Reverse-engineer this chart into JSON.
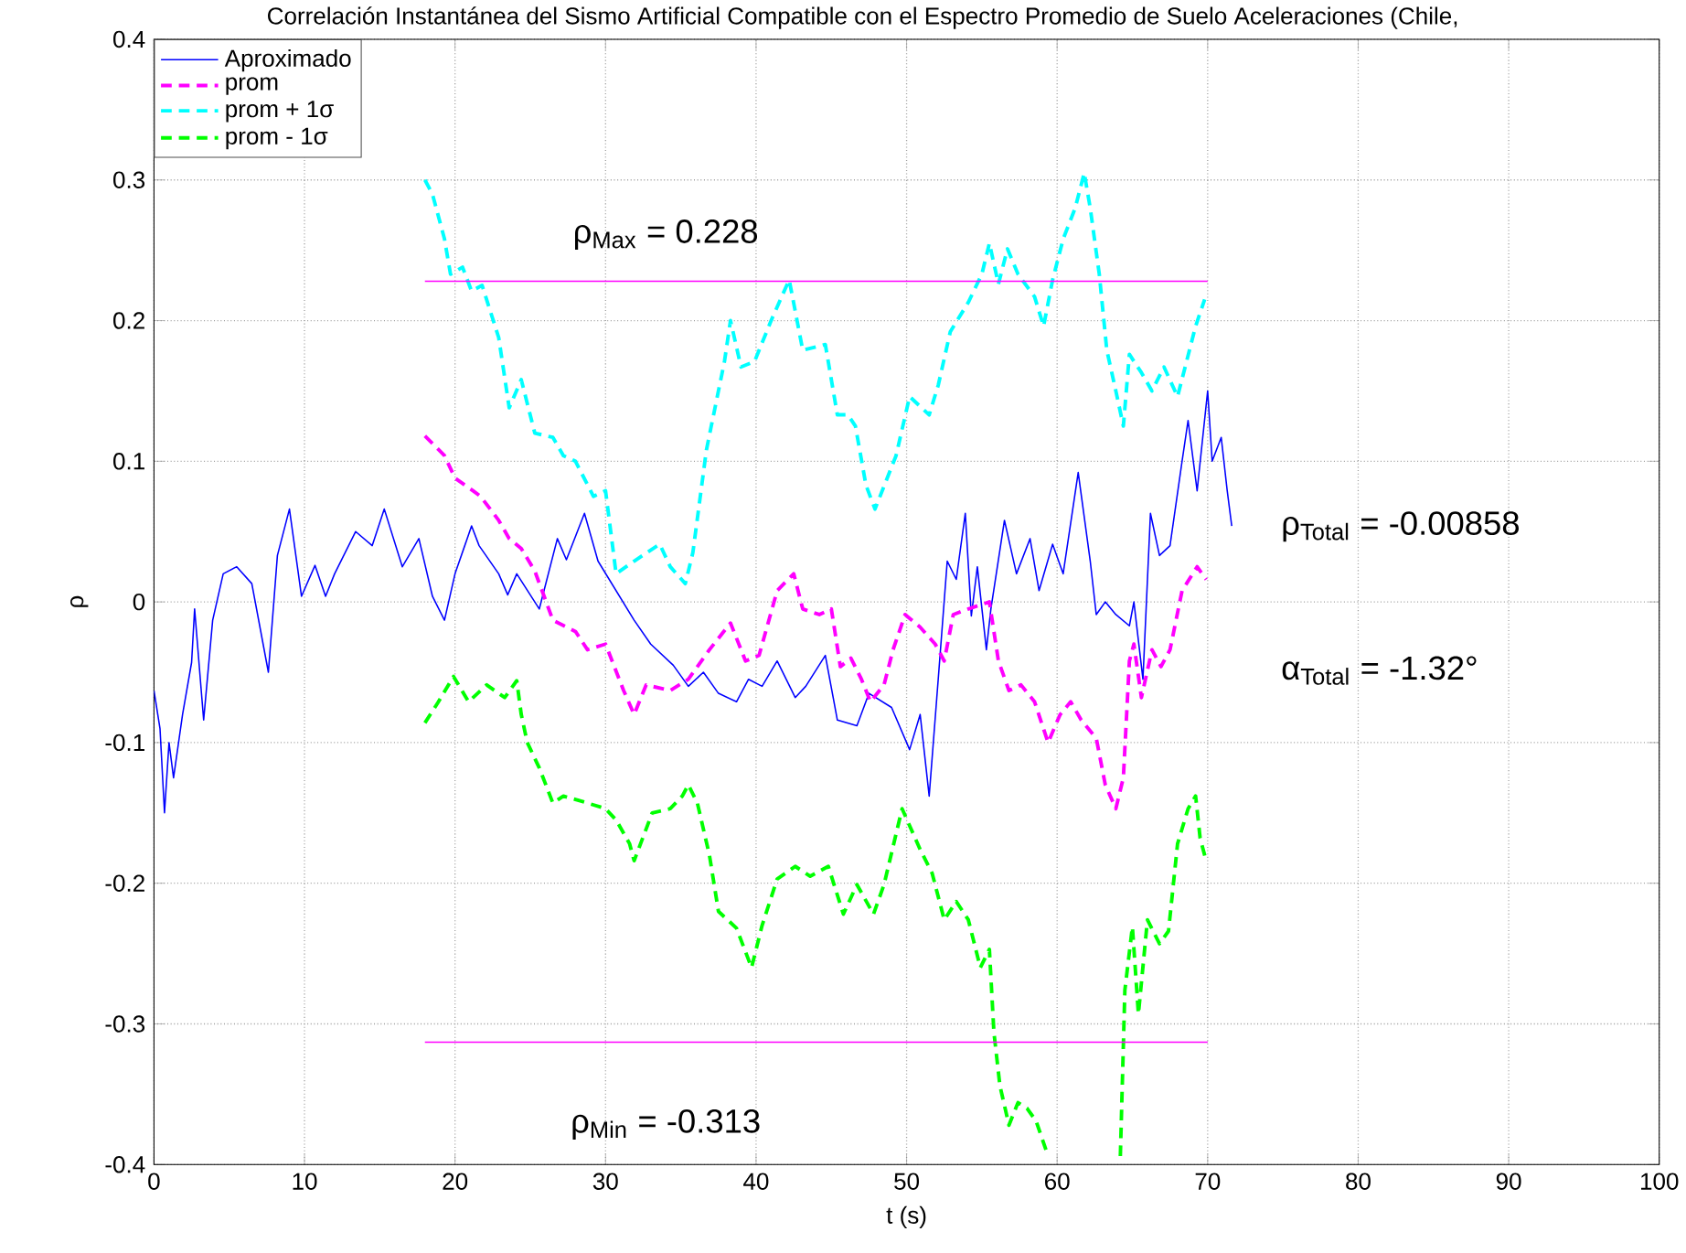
{
  "chart_data": {
    "type": "line",
    "title": "Correlación Instantánea del Sismo Artificial Compatible con el Espectro Promedio de Suelo Aceleraciones (Chile,",
    "xlabel": "t (s)",
    "ylabel": "ρ",
    "xlim": [
      0,
      100
    ],
    "ylim": [
      -0.4,
      0.4
    ],
    "xticks": [
      0,
      10,
      20,
      30,
      40,
      50,
      60,
      70,
      80,
      90,
      100
    ],
    "yticks": [
      -0.4,
      -0.3,
      -0.2,
      -0.1,
      0,
      0.1,
      0.2,
      0.3,
      0.4
    ],
    "grid": true,
    "legend": "top left",
    "series": [
      {
        "name": "Aproximado",
        "color": "#0000ff",
        "line_style": "solid",
        "x": [
          0,
          0.4,
          0.7,
          1.0,
          1.3,
          1.9,
          2.5,
          2.7,
          3.3,
          3.9,
          4.6,
          5.5,
          6.5,
          7.6,
          8.2,
          9.0,
          9.8,
          10.7,
          11.4,
          12.0,
          13.4,
          14.5,
          15.3,
          16.5,
          17.6,
          18.5,
          19.3,
          20.0,
          21.1,
          21.6,
          22.9,
          23.5,
          24.1,
          25.6,
          26.8,
          27.4,
          28.6,
          29.5,
          30.7,
          31.9,
          33.0,
          34.5,
          35.5,
          36.5,
          37.5,
          38.7,
          39.5,
          40.4,
          41.4,
          42.6,
          43.3,
          44.6,
          45.4,
          46.7,
          47.5,
          49.0,
          50.2,
          50.9,
          51.5,
          52.1,
          52.7,
          53.3,
          53.9,
          54.3,
          54.7,
          55.3,
          55.6,
          56.5,
          57.3,
          58.2,
          58.8,
          59.7,
          60.4,
          61.4,
          62.2,
          62.6,
          63.2,
          63.9,
          64.8,
          65.1,
          65.7,
          66.2,
          66.8,
          67.5,
          68.3,
          68.7,
          69.3,
          70.0,
          70.3,
          70.9,
          71.3,
          71.6
        ],
        "values": [
          -0.063,
          -0.09,
          -0.15,
          -0.1,
          -0.125,
          -0.08,
          -0.043,
          -0.005,
          -0.084,
          -0.013,
          0.02,
          0.025,
          0.013,
          -0.05,
          0.033,
          0.066,
          0.004,
          0.026,
          0.004,
          0.02,
          0.05,
          0.04,
          0.066,
          0.025,
          0.045,
          0.004,
          -0.013,
          0.02,
          0.054,
          0.04,
          0.02,
          0.005,
          0.02,
          -0.005,
          0.045,
          0.03,
          0.063,
          0.029,
          0.008,
          -0.013,
          -0.03,
          -0.045,
          -0.06,
          -0.05,
          -0.065,
          -0.071,
          -0.055,
          -0.06,
          -0.042,
          -0.068,
          -0.06,
          -0.038,
          -0.084,
          -0.088,
          -0.065,
          -0.075,
          -0.105,
          -0.08,
          -0.138,
          -0.055,
          0.029,
          0.016,
          0.063,
          -0.01,
          0.025,
          -0.034,
          -0.005,
          0.058,
          0.02,
          0.045,
          0.008,
          0.041,
          0.02,
          0.092,
          0.029,
          -0.009,
          0.0,
          -0.009,
          -0.017,
          0.0,
          -0.055,
          0.063,
          0.033,
          0.04,
          0.1,
          0.129,
          0.079,
          0.15,
          0.1,
          0.117,
          0.079,
          0.054
        ]
      },
      {
        "name": "prom",
        "color": "#ff00ff",
        "line_style": "dashed",
        "x": [
          18.0,
          19.3,
          20.0,
          21.2,
          21.7,
          22.9,
          23.6,
          24.4,
          25.3,
          26.5,
          28.0,
          28.8,
          30.0,
          31.2,
          31.9,
          32.7,
          34.3,
          35.5,
          36.9,
          38.3,
          39.3,
          40.2,
          41.4,
          42.5,
          43.1,
          44.2,
          45.0,
          45.6,
          46.3,
          47.0,
          47.6,
          48.5,
          49.1,
          49.9,
          50.9,
          51.9,
          52.5,
          53.1,
          54.1,
          55.5,
          56.1,
          56.8,
          57.6,
          58.5,
          59.4,
          60.2,
          60.9,
          61.6,
          62.6,
          63.2,
          63.9,
          64.4,
          64.8,
          65.1,
          65.6,
          66.3,
          66.9,
          67.5,
          68.3,
          69.3,
          69.9
        ],
        "values": [
          0.118,
          0.104,
          0.088,
          0.079,
          0.075,
          0.058,
          0.045,
          0.038,
          0.022,
          -0.013,
          -0.021,
          -0.034,
          -0.03,
          -0.063,
          -0.08,
          -0.059,
          -0.063,
          -0.055,
          -0.034,
          -0.015,
          -0.042,
          -0.038,
          0.008,
          0.02,
          -0.005,
          -0.009,
          -0.005,
          -0.046,
          -0.04,
          -0.055,
          -0.071,
          -0.059,
          -0.034,
          -0.009,
          -0.018,
          -0.03,
          -0.042,
          -0.009,
          -0.005,
          0.0,
          -0.042,
          -0.063,
          -0.059,
          -0.071,
          -0.1,
          -0.08,
          -0.071,
          -0.084,
          -0.097,
          -0.13,
          -0.147,
          -0.125,
          -0.042,
          -0.03,
          -0.068,
          -0.034,
          -0.046,
          -0.034,
          0.008,
          0.025,
          0.016
        ]
      },
      {
        "name": "prom + 1σ",
        "color": "#00ffff",
        "line_style": "dashed",
        "x": [
          18.0,
          18.5,
          19.3,
          19.7,
          20.5,
          21.1,
          21.8,
          22.9,
          23.6,
          24.4,
          25.3,
          26.5,
          27.2,
          28.0,
          29.2,
          30.0,
          30.7,
          31.9,
          33.6,
          34.3,
          35.3,
          35.8,
          36.7,
          37.9,
          38.3,
          39.0,
          39.9,
          41.0,
          42.2,
          43.1,
          44.6,
          45.4,
          46.1,
          46.6,
          47.3,
          47.9,
          49.3,
          50.2,
          51.5,
          52.1,
          52.9,
          54.1,
          55.0,
          55.5,
          56.1,
          56.7,
          57.4,
          58.5,
          59.1,
          59.7,
          60.4,
          61.2,
          61.8,
          62.2,
          62.8,
          63.3,
          63.9,
          64.4,
          64.8,
          65.6,
          66.3,
          67.1,
          68.0,
          68.6,
          69.2,
          69.8
        ],
        "values": [
          0.3,
          0.29,
          0.258,
          0.233,
          0.238,
          0.221,
          0.225,
          0.188,
          0.138,
          0.158,
          0.12,
          0.117,
          0.104,
          0.1,
          0.075,
          0.079,
          0.02,
          0.029,
          0.041,
          0.025,
          0.013,
          0.035,
          0.108,
          0.171,
          0.2,
          0.167,
          0.171,
          0.2,
          0.229,
          0.179,
          0.183,
          0.133,
          0.133,
          0.125,
          0.083,
          0.066,
          0.104,
          0.146,
          0.133,
          0.154,
          0.192,
          0.213,
          0.233,
          0.255,
          0.226,
          0.251,
          0.233,
          0.217,
          0.196,
          0.229,
          0.258,
          0.28,
          0.305,
          0.28,
          0.233,
          0.179,
          0.15,
          0.125,
          0.176,
          0.163,
          0.15,
          0.167,
          0.146,
          0.171,
          0.196,
          0.215
        ]
      },
      {
        "name": "prom - 1σ",
        "color": "#00ff00",
        "line_style": "dashed",
        "x": [
          18.0,
          18.9,
          19.9,
          20.9,
          22.1,
          23.3,
          24.1,
          24.4,
          24.8,
          25.6,
          26.5,
          27.2,
          28.8,
          30.0,
          30.7,
          31.6,
          31.9,
          33.1,
          34.3,
          35.1,
          35.5,
          36.1,
          36.9,
          37.5,
          38.7,
          39.7,
          40.4,
          41.4,
          42.6,
          43.6,
          44.8,
          45.8,
          46.7,
          47.8,
          48.5,
          49.7,
          50.9,
          51.7,
          52.5,
          53.3,
          54.1,
          54.9,
          55.5,
          55.8,
          56.2,
          56.8,
          57.4,
          58.0,
          58.6,
          59.4,
          62.0,
          64.2,
          64.5,
          65.0,
          65.4,
          66.0,
          66.8,
          67.4,
          68.0,
          68.7,
          69.2,
          69.5,
          69.9
        ],
        "values": [
          -0.086,
          -0.071,
          -0.053,
          -0.071,
          -0.059,
          -0.068,
          -0.056,
          -0.08,
          -0.1,
          -0.118,
          -0.143,
          -0.138,
          -0.143,
          -0.147,
          -0.155,
          -0.172,
          -0.184,
          -0.15,
          -0.147,
          -0.138,
          -0.13,
          -0.143,
          -0.18,
          -0.22,
          -0.232,
          -0.26,
          -0.23,
          -0.197,
          -0.188,
          -0.195,
          -0.188,
          -0.222,
          -0.201,
          -0.222,
          -0.201,
          -0.147,
          -0.176,
          -0.193,
          -0.226,
          -0.213,
          -0.226,
          -0.26,
          -0.247,
          -0.306,
          -0.344,
          -0.372,
          -0.356,
          -0.36,
          -0.369,
          -0.394,
          null,
          -0.394,
          -0.276,
          -0.231,
          -0.293,
          -0.226,
          -0.243,
          -0.234,
          -0.172,
          -0.147,
          -0.138,
          -0.168,
          -0.184
        ]
      },
      {
        "color": "#ff00ff",
        "line_style": "solid",
        "x": [
          18,
          70
        ],
        "values": [
          0.228,
          0.228
        ]
      },
      {
        "color": "#ff00ff",
        "line_style": "solid",
        "x": [
          18,
          70
        ],
        "values": [
          -0.313,
          -0.313
        ]
      }
    ],
    "annotations": [
      {
        "text": "ρ$_{Max}$ = 0.228",
        "x": 34,
        "y": 0.228
      },
      {
        "text": "ρ$_{Min}$ = -0.313",
        "x": 34,
        "y": -0.313
      },
      "ρ$_{Total}$ = -0.00858",
      "α$_{Total}$ = -1.32°"
    ]
  }
}
